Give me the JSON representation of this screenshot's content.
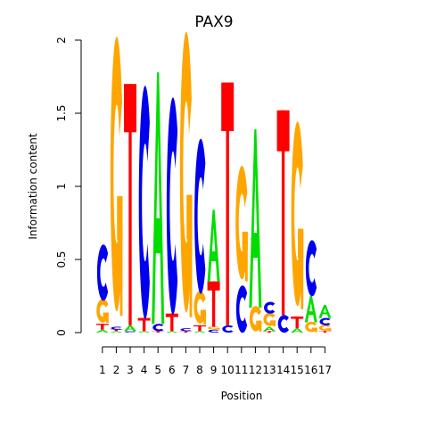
{
  "chart_data": {
    "type": "sequence-logo",
    "title": "PAX9",
    "xlabel": "Position",
    "ylabel": "Information content",
    "ylim": [
      0,
      2
    ],
    "yticks": [
      {
        "value": 0,
        "label": "0"
      },
      {
        "value": 0.5,
        "label": "0.5"
      },
      {
        "value": 1,
        "label": "1"
      },
      {
        "value": 1.5,
        "label": "1.5"
      },
      {
        "value": 2,
        "label": "2"
      }
    ],
    "positions": [
      "1",
      "2",
      "3",
      "4",
      "5",
      "6",
      "7",
      "8",
      "9",
      "10",
      "11",
      "12",
      "13",
      "14",
      "15",
      "16",
      "17"
    ],
    "colors": {
      "A": "#00dd00",
      "C": "#0000ee",
      "G": "#ffa500",
      "T": "#ff0000"
    },
    "stacks": [
      [
        {
          "letter": "A",
          "value": 0.02
        },
        {
          "letter": "T",
          "value": 0.04
        },
        {
          "letter": "G",
          "value": 0.16
        },
        {
          "letter": "C",
          "value": 0.38
        }
      ],
      [
        {
          "letter": "A",
          "value": 0.01
        },
        {
          "letter": "T",
          "value": 0.01
        },
        {
          "letter": "C",
          "value": 0.02
        },
        {
          "letter": "G",
          "value": 1.86
        }
      ],
      [
        {
          "letter": "C",
          "value": 0.01
        },
        {
          "letter": "A",
          "value": 0.04
        },
        {
          "letter": "T",
          "value": 1.65
        }
      ],
      [
        {
          "letter": "A",
          "value": 0.01
        },
        {
          "letter": "T",
          "value": 0.09
        },
        {
          "letter": "C",
          "value": 1.58
        }
      ],
      [
        {
          "letter": "T",
          "value": 0.01
        },
        {
          "letter": "C",
          "value": 0.05
        },
        {
          "letter": "A",
          "value": 1.72
        }
      ],
      [
        {
          "letter": "A",
          "value": 0.01
        },
        {
          "letter": "T",
          "value": 0.12
        },
        {
          "letter": "C",
          "value": 1.47
        }
      ],
      [
        {
          "letter": "T",
          "value": 0.01
        },
        {
          "letter": "C",
          "value": 0.02
        },
        {
          "letter": "G",
          "value": 1.9
        }
      ],
      [
        {
          "letter": "A",
          "value": 0.01
        },
        {
          "letter": "T",
          "value": 0.04
        },
        {
          "letter": "G",
          "value": 0.22
        },
        {
          "letter": "C",
          "value": 1.05
        }
      ],
      [
        {
          "letter": "C",
          "value": 0.02
        },
        {
          "letter": "G",
          "value": 0.02
        },
        {
          "letter": "T",
          "value": 0.31
        },
        {
          "letter": "A",
          "value": 0.49
        }
      ],
      [
        {
          "letter": "C",
          "value": 0.05
        },
        {
          "letter": "T",
          "value": 1.66
        }
      ],
      [
        {
          "letter": "C",
          "value": 0.32
        },
        {
          "letter": "G",
          "value": 0.77
        }
      ],
      [
        {
          "letter": "G",
          "value": 0.17
        },
        {
          "letter": "A",
          "value": 1.22
        }
      ],
      [
        {
          "letter": "T",
          "value": 0.01
        },
        {
          "letter": "A",
          "value": 0.03
        },
        {
          "letter": "G",
          "value": 0.09
        },
        {
          "letter": "C",
          "value": 0.08
        }
      ],
      [
        {
          "letter": "C",
          "value": 0.12
        },
        {
          "letter": "T",
          "value": 1.4
        }
      ],
      [
        {
          "letter": "A",
          "value": 0.03
        },
        {
          "letter": "T",
          "value": 0.08
        },
        {
          "letter": "G",
          "value": 1.25
        }
      ],
      [
        {
          "letter": "G",
          "value": 0.07
        },
        {
          "letter": "A",
          "value": 0.18
        },
        {
          "letter": "C",
          "value": 0.38
        }
      ],
      [
        {
          "letter": "T",
          "value": 0.01
        },
        {
          "letter": "G",
          "value": 0.04
        },
        {
          "letter": "C",
          "value": 0.05
        },
        {
          "letter": "A",
          "value": 0.09
        }
      ]
    ]
  }
}
